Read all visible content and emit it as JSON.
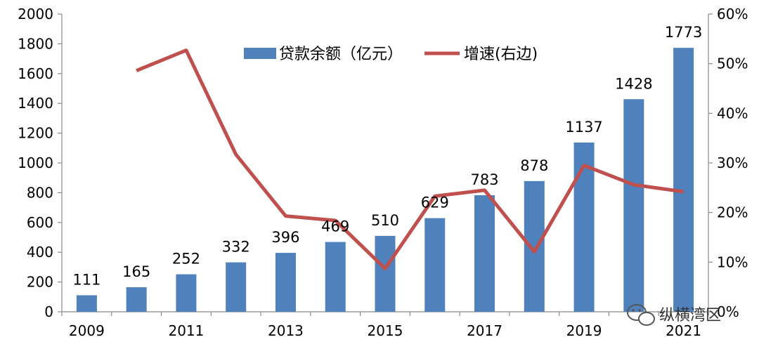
{
  "chart_data": {
    "type": "bar",
    "categories": [
      "2009",
      "2010",
      "2011",
      "2012",
      "2013",
      "2014",
      "2015",
      "2016",
      "2017",
      "2018",
      "2019",
      "2020",
      "2021"
    ],
    "x_tick_labels": [
      "2009",
      "2011",
      "2013",
      "2015",
      "2017",
      "2019",
      "2021"
    ],
    "series": [
      {
        "name": "贷款余额（亿元）",
        "type": "bar",
        "axis": "left",
        "color": "#4f81bd",
        "values": [
          111,
          165,
          252,
          332,
          396,
          469,
          510,
          629,
          783,
          878,
          1137,
          1428,
          1773
        ],
        "labels": [
          "111",
          "165",
          "252",
          "332",
          "396",
          "469",
          "510",
          "629",
          "783",
          "878",
          "1137",
          "1428",
          "1773"
        ]
      },
      {
        "name": "增速(右边)",
        "type": "line",
        "axis": "right",
        "color": "#c0504d",
        "values": [
          null,
          48.6,
          52.7,
          31.7,
          19.3,
          18.4,
          8.7,
          23.3,
          24.5,
          12.1,
          29.5,
          25.6,
          24.2
        ]
      }
    ],
    "y_left": {
      "min": 0,
      "max": 2000,
      "step": 200,
      "tick_labels": [
        "0",
        "200",
        "400",
        "600",
        "800",
        "1000",
        "1200",
        "1400",
        "1600",
        "1800",
        "2000"
      ]
    },
    "y_right": {
      "min": 0,
      "max": 60,
      "step": 10,
      "tick_labels": [
        "0%",
        "10%",
        "20%",
        "30%",
        "40%",
        "50%",
        "60%"
      ]
    },
    "grid": false,
    "legend_position": "top"
  },
  "watermark": {
    "text": "纵横湾区",
    "icon": "wechat-icon"
  }
}
